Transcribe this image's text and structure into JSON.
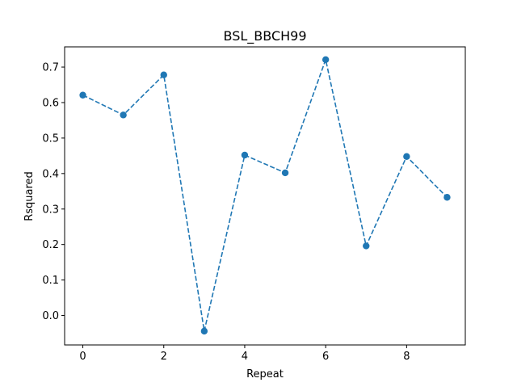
{
  "chart_data": {
    "type": "line",
    "title": "BSL_BBCH99",
    "xlabel": "Repeat",
    "ylabel": "Rsquared",
    "xlim": [
      -0.45,
      9.45
    ],
    "ylim": [
      -0.083,
      0.757
    ],
    "xticks": [
      0,
      2,
      4,
      6,
      8
    ],
    "xtick_labels": [
      "0",
      "2",
      "4",
      "6",
      "8"
    ],
    "yticks": [
      0.0,
      0.1,
      0.2,
      0.3,
      0.4,
      0.5,
      0.6,
      0.7
    ],
    "ytick_labels": [
      "0.0",
      "0.1",
      "0.2",
      "0.3",
      "0.4",
      "0.5",
      "0.6",
      "0.7"
    ],
    "grid": false,
    "series": [
      {
        "x": [
          0,
          1,
          2,
          3,
          4,
          5,
          6,
          7,
          8,
          9
        ],
        "y": [
          0.621,
          0.565,
          0.678,
          -0.044,
          0.452,
          0.402,
          0.721,
          0.196,
          0.448,
          0.333
        ],
        "color": "#1f77b4",
        "linestyle": "dashed",
        "marker": "circle"
      }
    ]
  }
}
